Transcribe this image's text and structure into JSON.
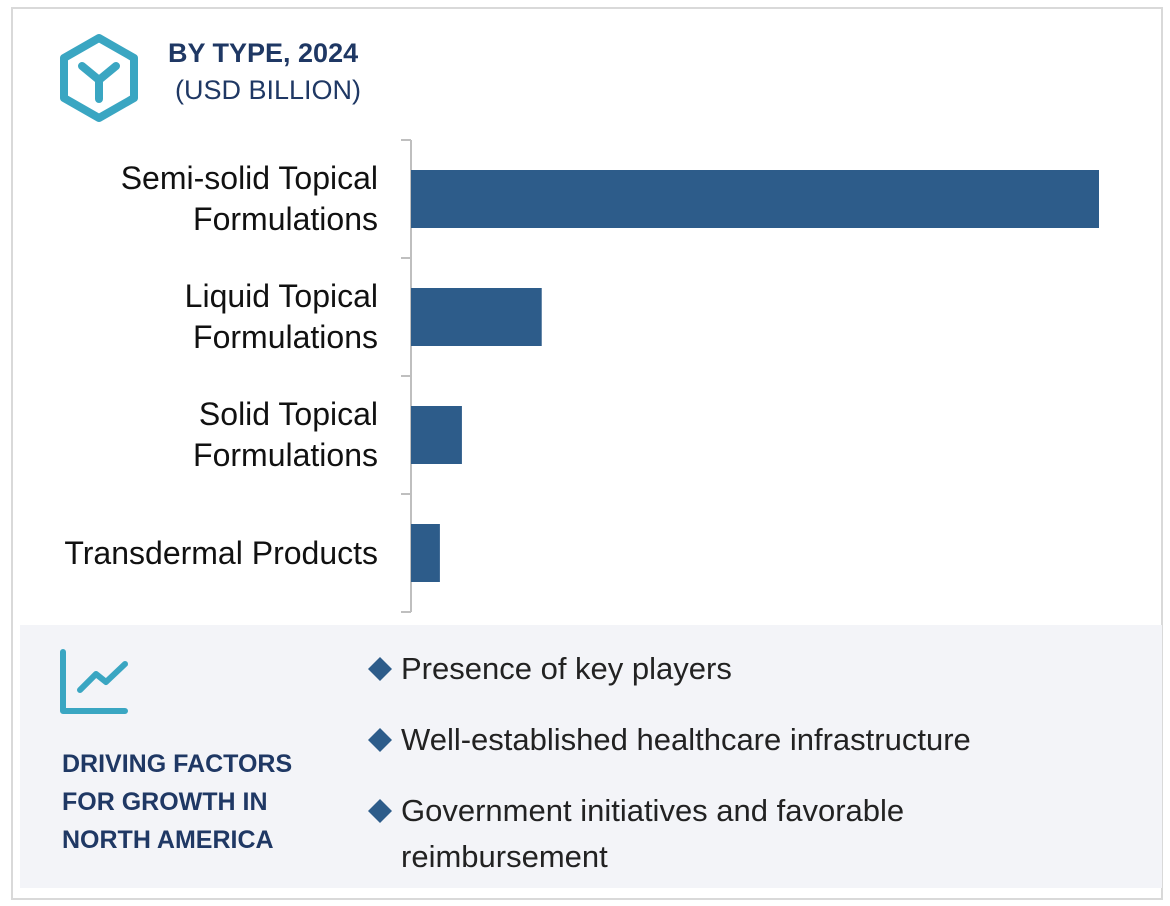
{
  "chart_data": {
    "type": "bar",
    "orientation": "horizontal",
    "title": "BY TYPE, 2024",
    "subtitle": "(USD BILLION)",
    "categories": [
      "Semi-solid Topical Formulations",
      "Liquid Topical Formulations",
      "Solid Topical Formulations",
      "Transdermal Products"
    ],
    "values": [
      100,
      19,
      7.4,
      4.2
    ],
    "color": "#2d5c8a",
    "xlim": [
      0,
      100
    ]
  },
  "driving_factors": {
    "title": "DRIVING FACTORS FOR GROWTH IN NORTH AMERICA",
    "items": [
      "Presence of key players",
      "Well-established healthcare infrastructure",
      "Government initiatives and favorable reimbursement"
    ]
  }
}
